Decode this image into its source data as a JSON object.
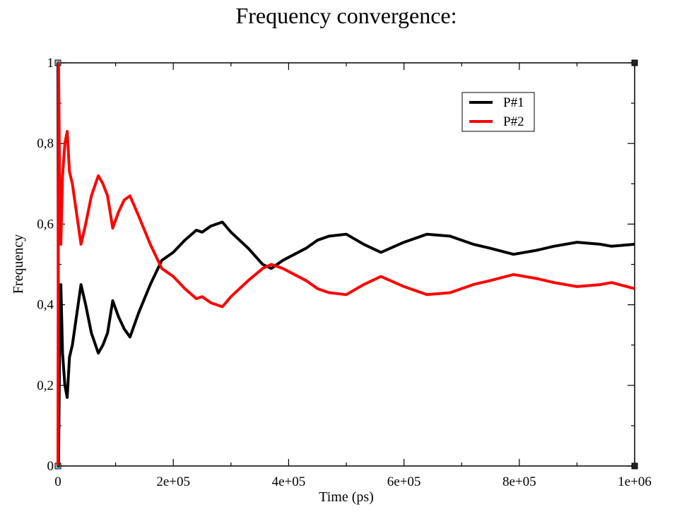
{
  "chart_data": {
    "type": "line",
    "title": "Frequency convergence:",
    "xlabel": "Time (ps)",
    "ylabel": "Frequency",
    "xlim": [
      0,
      1000000
    ],
    "ylim": [
      0,
      1
    ],
    "grid": false,
    "legend_position": "top-right",
    "x_ticks": [
      {
        "value": 0,
        "label": "0"
      },
      {
        "value": 200000,
        "label": "2e+05"
      },
      {
        "value": 400000,
        "label": "4e+05"
      },
      {
        "value": 600000,
        "label": "6e+05"
      },
      {
        "value": 800000,
        "label": "8e+05"
      },
      {
        "value": 1000000,
        "label": "1e+06"
      }
    ],
    "y_ticks": [
      {
        "value": 0,
        "label": "0"
      },
      {
        "value": 0.2,
        "label": "0,2"
      },
      {
        "value": 0.4,
        "label": "0,4"
      },
      {
        "value": 0.6,
        "label": "0,6"
      },
      {
        "value": 0.8,
        "label": "0,8"
      },
      {
        "value": 1,
        "label": "1"
      }
    ],
    "series": [
      {
        "name": "P#1",
        "color": "#000000",
        "points": [
          [
            0,
            1.0
          ],
          [
            1000,
            0.0
          ],
          [
            3000,
            0.3
          ],
          [
            5000,
            0.45
          ],
          [
            8000,
            0.28
          ],
          [
            12000,
            0.2
          ],
          [
            16000,
            0.17
          ],
          [
            20000,
            0.27
          ],
          [
            25000,
            0.3
          ],
          [
            32000,
            0.37
          ],
          [
            40000,
            0.45
          ],
          [
            48000,
            0.4
          ],
          [
            58000,
            0.33
          ],
          [
            70000,
            0.28
          ],
          [
            78000,
            0.3
          ],
          [
            86000,
            0.33
          ],
          [
            95000,
            0.41
          ],
          [
            105000,
            0.37
          ],
          [
            115000,
            0.34
          ],
          [
            125000,
            0.32
          ],
          [
            140000,
            0.38
          ],
          [
            160000,
            0.45
          ],
          [
            180000,
            0.51
          ],
          [
            200000,
            0.53
          ],
          [
            220000,
            0.56
          ],
          [
            240000,
            0.585
          ],
          [
            250000,
            0.58
          ],
          [
            265000,
            0.595
          ],
          [
            285000,
            0.605
          ],
          [
            300000,
            0.58
          ],
          [
            330000,
            0.54
          ],
          [
            355000,
            0.5
          ],
          [
            370000,
            0.49
          ],
          [
            390000,
            0.51
          ],
          [
            410000,
            0.525
          ],
          [
            430000,
            0.54
          ],
          [
            450000,
            0.56
          ],
          [
            470000,
            0.57
          ],
          [
            500000,
            0.575
          ],
          [
            530000,
            0.55
          ],
          [
            560000,
            0.53
          ],
          [
            600000,
            0.555
          ],
          [
            640000,
            0.575
          ],
          [
            680000,
            0.57
          ],
          [
            720000,
            0.55
          ],
          [
            750000,
            0.54
          ],
          [
            790000,
            0.525
          ],
          [
            830000,
            0.535
          ],
          [
            860000,
            0.545
          ],
          [
            900000,
            0.555
          ],
          [
            940000,
            0.55
          ],
          [
            960000,
            0.545
          ],
          [
            1000000,
            0.55
          ]
        ]
      },
      {
        "name": "P#2",
        "color": "#ff0000",
        "points": [
          [
            0,
            0.0
          ],
          [
            1000,
            1.0
          ],
          [
            3000,
            0.7
          ],
          [
            5000,
            0.55
          ],
          [
            8000,
            0.72
          ],
          [
            12000,
            0.8
          ],
          [
            16000,
            0.83
          ],
          [
            20000,
            0.73
          ],
          [
            25000,
            0.7
          ],
          [
            32000,
            0.63
          ],
          [
            40000,
            0.55
          ],
          [
            48000,
            0.6
          ],
          [
            58000,
            0.67
          ],
          [
            70000,
            0.72
          ],
          [
            78000,
            0.7
          ],
          [
            86000,
            0.67
          ],
          [
            95000,
            0.59
          ],
          [
            105000,
            0.63
          ],
          [
            115000,
            0.66
          ],
          [
            125000,
            0.67
          ],
          [
            140000,
            0.62
          ],
          [
            160000,
            0.55
          ],
          [
            180000,
            0.49
          ],
          [
            200000,
            0.47
          ],
          [
            220000,
            0.44
          ],
          [
            240000,
            0.415
          ],
          [
            250000,
            0.42
          ],
          [
            265000,
            0.405
          ],
          [
            285000,
            0.395
          ],
          [
            300000,
            0.42
          ],
          [
            330000,
            0.46
          ],
          [
            355000,
            0.49
          ],
          [
            370000,
            0.5
          ],
          [
            390000,
            0.49
          ],
          [
            410000,
            0.475
          ],
          [
            430000,
            0.46
          ],
          [
            450000,
            0.44
          ],
          [
            470000,
            0.43
          ],
          [
            500000,
            0.425
          ],
          [
            530000,
            0.45
          ],
          [
            560000,
            0.47
          ],
          [
            600000,
            0.445
          ],
          [
            640000,
            0.425
          ],
          [
            680000,
            0.43
          ],
          [
            720000,
            0.45
          ],
          [
            750000,
            0.46
          ],
          [
            790000,
            0.475
          ],
          [
            830000,
            0.465
          ],
          [
            860000,
            0.455
          ],
          [
            900000,
            0.445
          ],
          [
            940000,
            0.45
          ],
          [
            960000,
            0.455
          ],
          [
            1000000,
            0.44
          ]
        ]
      }
    ]
  }
}
